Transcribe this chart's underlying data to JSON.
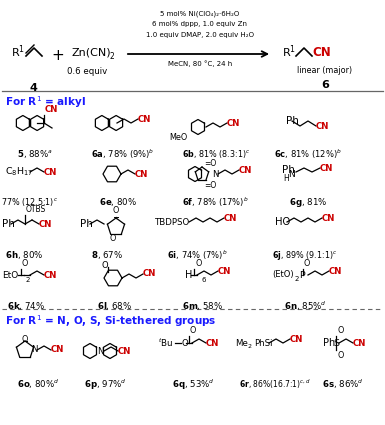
{
  "bg_color": "#ffffff",
  "cn_color": "#cc0000",
  "section_color": "#1a1aff",
  "text_color": "#000000",
  "line1": "5 mol% Ni(ClO₄)₂·6H₂O",
  "line2": "6 mol% dppp, 1.0 equiv Zn",
  "line3": "1.0 equiv DMAP, 2.0 equiv H₂O",
  "line4": "MeCN, 80 °C, 24 h"
}
